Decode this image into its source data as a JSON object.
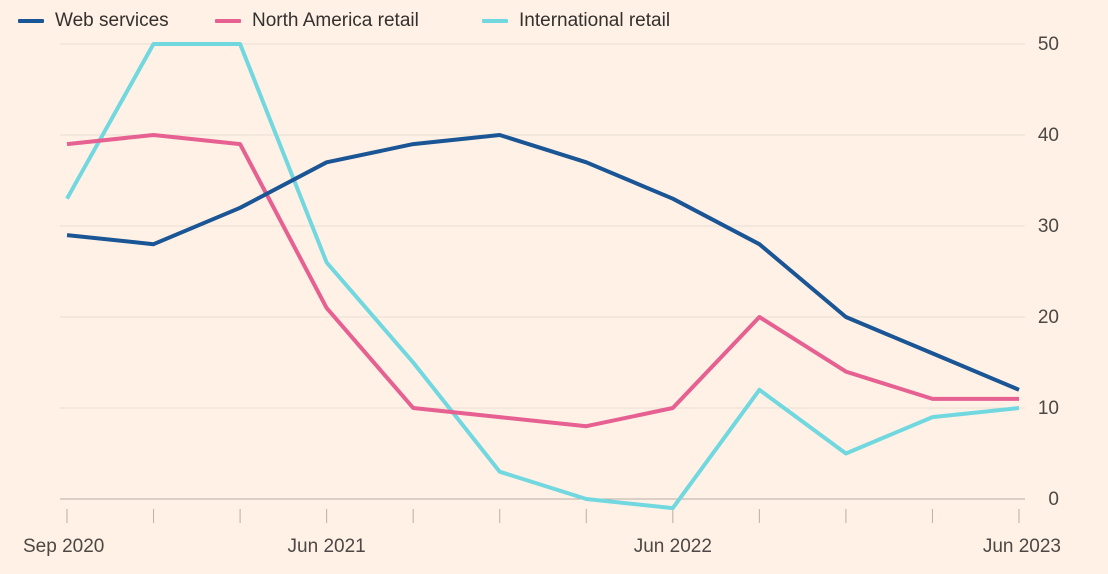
{
  "legend": [
    {
      "label": "Web services",
      "color": "#1A5595"
    },
    {
      "label": "North America retail",
      "color": "#E66091"
    },
    {
      "label": "International retail",
      "color": "#72D8E0"
    }
  ],
  "chart_data": {
    "type": "line",
    "title": "",
    "xlabel": "",
    "ylabel": "",
    "x": [
      "Sep 2020",
      "Dec 2020",
      "Mar 2021",
      "Jun 2021",
      "Sep 2021",
      "Dec 2021",
      "Mar 2022",
      "Jun 2022",
      "Sep 2022",
      "Dec 2022",
      "Mar 2023",
      "Jun 2023"
    ],
    "x_tick_labels": [
      {
        "index": 0,
        "label": "Sep 2020"
      },
      {
        "index": 3,
        "label": "Jun 2021"
      },
      {
        "index": 7,
        "label": "Jun 2022"
      },
      {
        "index": 11,
        "label": "Jun 2023"
      }
    ],
    "y_ticks": [
      0,
      10,
      20,
      30,
      40,
      50
    ],
    "ylim": [
      -1,
      50
    ],
    "y_axis_side": "right",
    "grid": "horizontal",
    "legend_position": "top-left",
    "series": [
      {
        "name": "Web services",
        "color": "#1A5595",
        "values": [
          29,
          28,
          32,
          37,
          39,
          40,
          37,
          33,
          28,
          20,
          16,
          12
        ]
      },
      {
        "name": "North America retail",
        "color": "#E66091",
        "values": [
          39,
          40,
          39,
          21,
          10,
          9,
          8,
          10,
          20,
          14,
          11,
          11
        ]
      },
      {
        "name": "International retail",
        "color": "#72D8E0",
        "values": [
          33,
          50,
          50,
          26,
          15,
          3,
          0,
          -1,
          12,
          5,
          9,
          10
        ]
      }
    ]
  }
}
